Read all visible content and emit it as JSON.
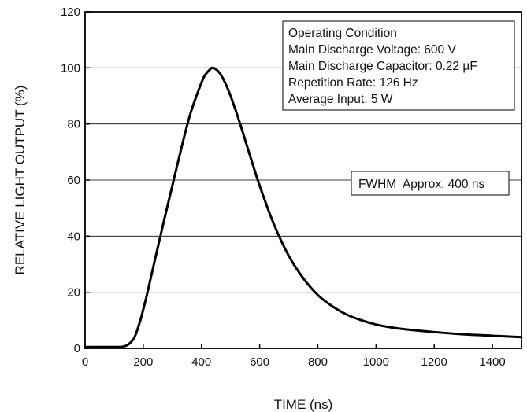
{
  "chart_data": {
    "type": "line",
    "title": "",
    "xlabel": "TIME (ns)",
    "ylabel": "RELATIVE LIGHT OUTPUT (%)",
    "xlim": [
      0,
      1500
    ],
    "ylim": [
      0,
      120
    ],
    "xticks": [
      "0",
      "200",
      "400",
      "600",
      "800",
      "1000",
      "1200",
      "1400"
    ],
    "yticks": [
      "0",
      "20",
      "40",
      "60",
      "80",
      "100",
      "120"
    ],
    "grid": "horizontal",
    "series": [
      {
        "name": "",
        "color": "#000000",
        "x": [
          0,
          100,
          130,
          150,
          170,
          190,
          210,
          230,
          250,
          270,
          300,
          330,
          360,
          390,
          410,
          430,
          440,
          460,
          480,
          500,
          530,
          560,
          600,
          650,
          700,
          750,
          800,
          850,
          900,
          950,
          1000,
          1050,
          1100,
          1200,
          1300,
          1400,
          1500
        ],
        "y": [
          0.5,
          0.5,
          0.6,
          1.5,
          4,
          10,
          18,
          27,
          36,
          45,
          58,
          71,
          83,
          92,
          97,
          99.5,
          100,
          98.5,
          95,
          90,
          81,
          71,
          58,
          44,
          33,
          25,
          19,
          15,
          12,
          10,
          8.5,
          7.5,
          6.8,
          5.8,
          5,
          4.5,
          4
        ]
      }
    ],
    "annotations": [
      {
        "lines": [
          "Operating Condition",
          "Main Discharge Voltage: 600 V",
          "Main Discharge Capacitor: 0.22 µF",
          "Repetition Rate: 126 Hz",
          "Average Input: 5 W"
        ]
      },
      {
        "lines": [
          "FWHM  Approx. 400 ns"
        ]
      }
    ]
  }
}
